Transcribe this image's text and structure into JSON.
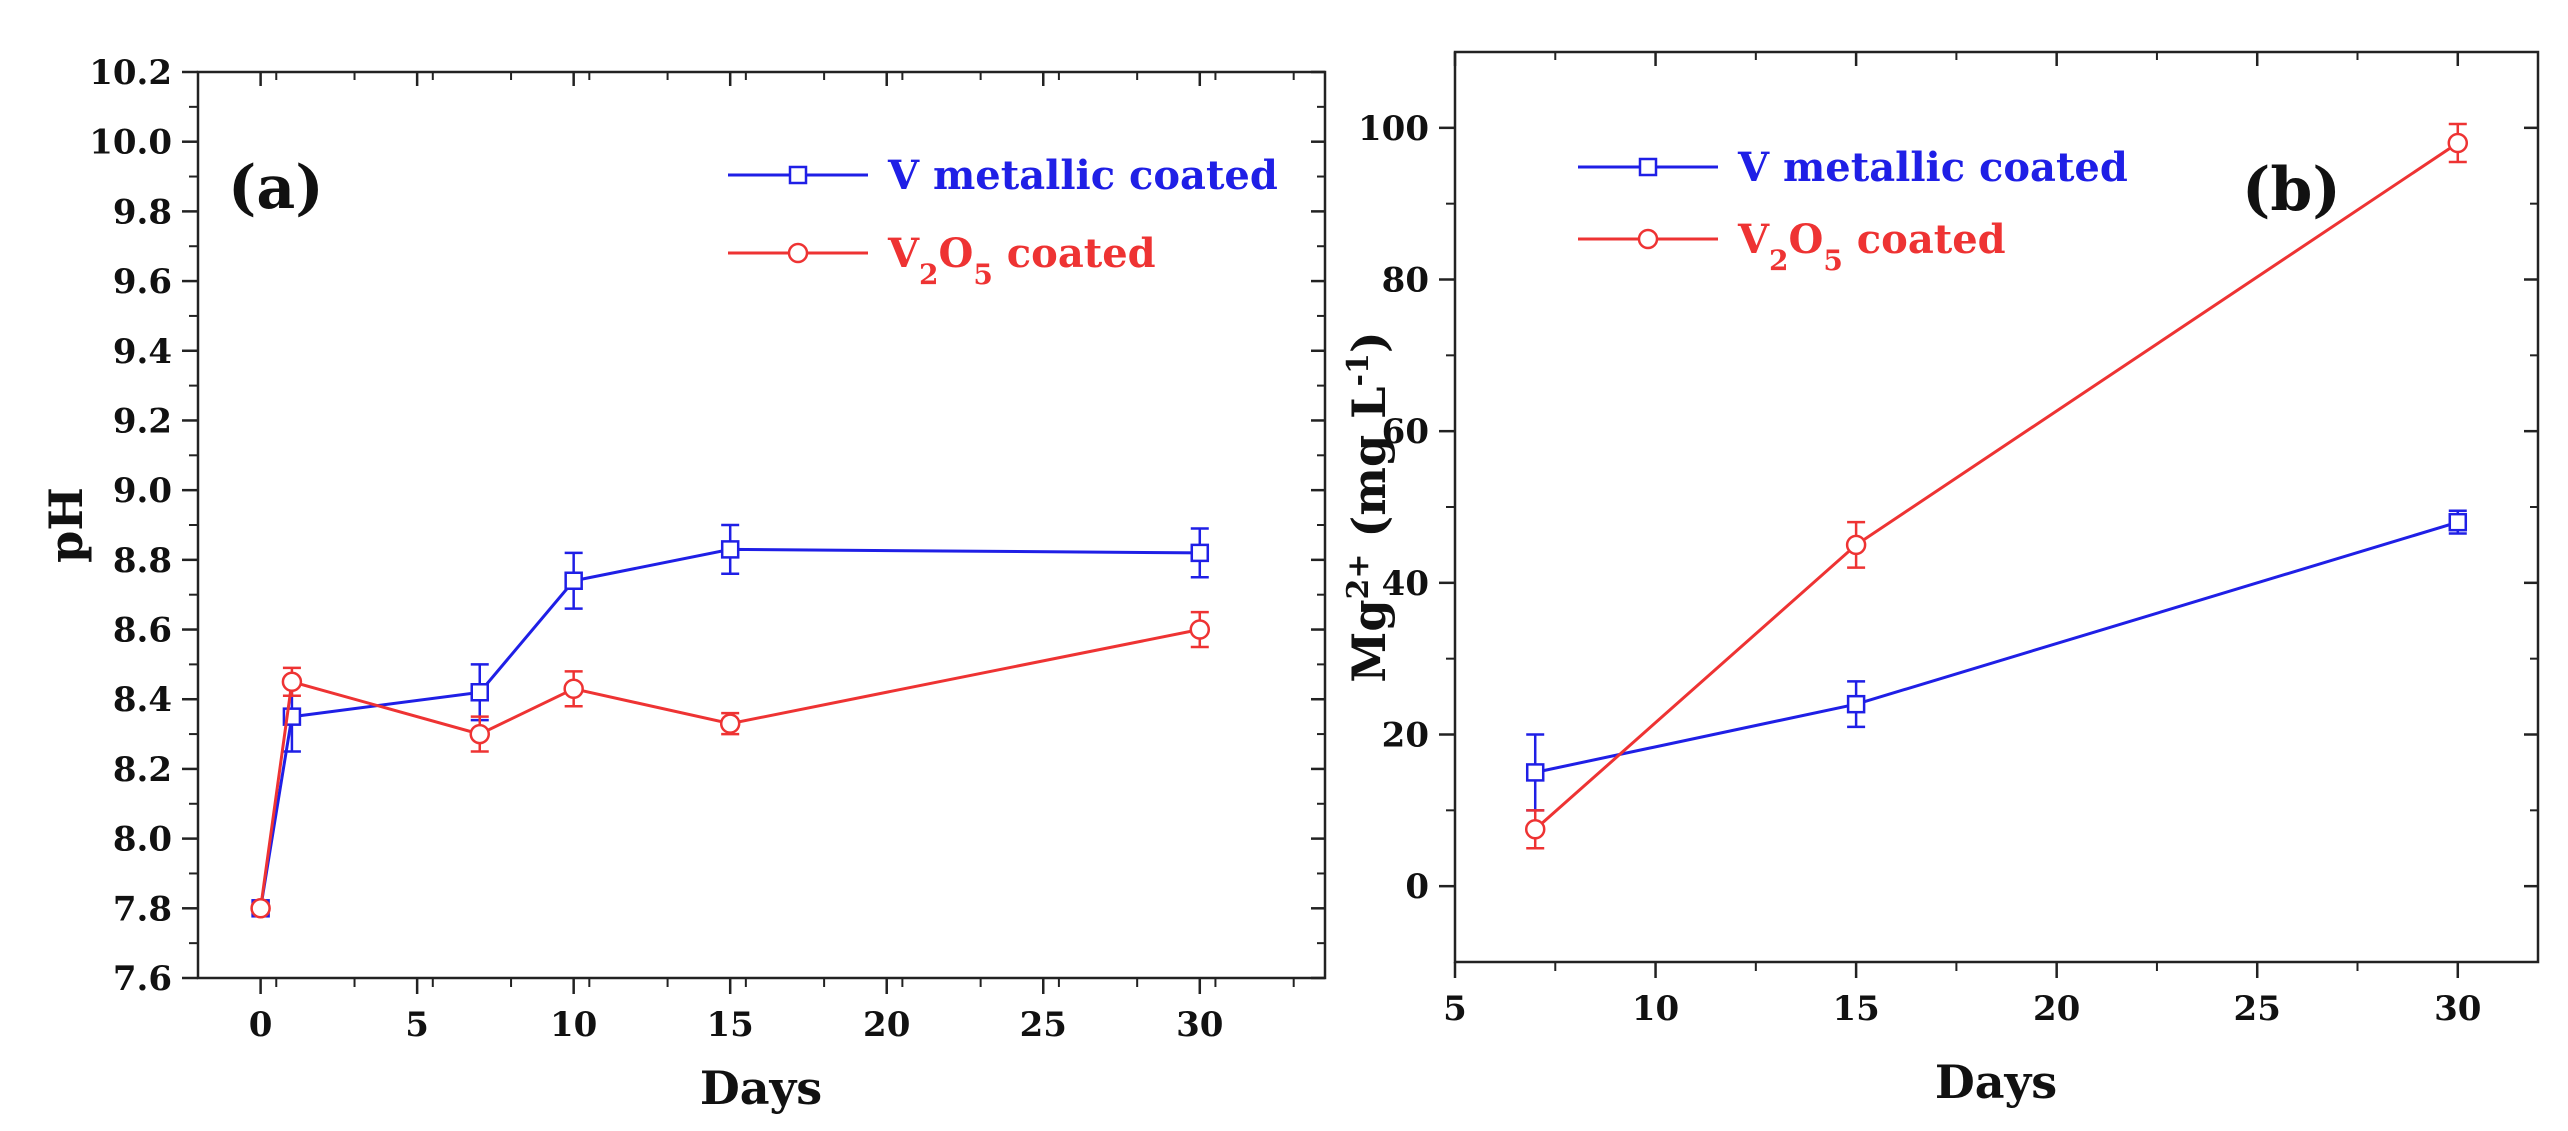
{
  "chart_data": [
    {
      "type": "line",
      "panel_label": "(a)",
      "xlabel": "Days",
      "ylabel": "pH",
      "xlim": [
        -2,
        34
      ],
      "ylim": [
        7.6,
        10.2
      ],
      "xticks": [
        0,
        5,
        10,
        15,
        20,
        25,
        30
      ],
      "xtick_labels": [
        "0",
        "5",
        "10",
        "15",
        "20",
        "25",
        "30"
      ],
      "yticks": [
        7.6,
        7.8,
        8.0,
        8.2,
        8.4,
        8.6,
        8.8,
        9.0,
        9.2,
        9.4,
        9.6,
        9.8,
        10.0,
        10.2
      ],
      "ytick_labels": [
        "7.6",
        "7.8",
        "8.0",
        "8.2",
        "8.4",
        "8.6",
        "8.8",
        "9.0",
        "9.2",
        "9.4",
        "9.6",
        "9.8",
        "10.0",
        "10.2"
      ],
      "legend_position": "top-right",
      "series": [
        {
          "name": "V metallic coated",
          "legend_parts": [
            {
              "text": "V metallic coated",
              "sub": false
            }
          ],
          "color": "#1f1fe6",
          "marker": "square",
          "x": [
            0,
            1,
            7,
            10,
            15,
            30
          ],
          "y": [
            7.8,
            8.35,
            8.42,
            8.74,
            8.83,
            8.82
          ],
          "yerr": [
            0,
            0.1,
            0.08,
            0.08,
            0.07,
            0.07
          ]
        },
        {
          "name": "V2O5 coated",
          "legend_parts": [
            {
              "text": "V",
              "sub": false
            },
            {
              "text": "2",
              "sub": true
            },
            {
              "text": "O",
              "sub": false
            },
            {
              "text": "5",
              "sub": true
            },
            {
              "text": " coated",
              "sub": false
            }
          ],
          "color": "#ee3333",
          "marker": "circle",
          "x": [
            0,
            1,
            7,
            10,
            15,
            30
          ],
          "y": [
            7.8,
            8.45,
            8.3,
            8.43,
            8.33,
            8.6
          ],
          "yerr": [
            0,
            0.04,
            0.05,
            0.05,
            0.03,
            0.05
          ]
        }
      ]
    },
    {
      "type": "line",
      "panel_label": "(b)",
      "xlabel": "Days",
      "ylabel_parts": [
        {
          "text": "Mg",
          "shift": "normal"
        },
        {
          "text": "2+",
          "shift": "super"
        },
        {
          "text": " (mg L",
          "shift": "normal"
        },
        {
          "text": "-1",
          "shift": "super"
        },
        {
          "text": ")",
          "shift": "normal"
        }
      ],
      "xlim": [
        5,
        32
      ],
      "ylim": [
        -10,
        110
      ],
      "xticks": [
        5,
        10,
        15,
        20,
        25,
        30
      ],
      "xtick_labels": [
        "5",
        "10",
        "15",
        "20",
        "25",
        "30"
      ],
      "yticks": [
        0,
        20,
        40,
        60,
        80,
        100
      ],
      "ytick_labels": [
        "0",
        "20",
        "40",
        "60",
        "80",
        "100"
      ],
      "legend_position": "top-left",
      "series": [
        {
          "name": "V metallic coated",
          "legend_parts": [
            {
              "text": "V metallic coated",
              "sub": false
            }
          ],
          "color": "#1f1fe6",
          "marker": "square",
          "x": [
            7,
            15,
            30
          ],
          "y": [
            15,
            24,
            48
          ],
          "yerr": [
            5,
            3,
            1.5
          ]
        },
        {
          "name": "V2O5 coated",
          "legend_parts": [
            {
              "text": "V",
              "sub": false
            },
            {
              "text": "2",
              "sub": true
            },
            {
              "text": "O",
              "sub": false
            },
            {
              "text": "5",
              "sub": true
            },
            {
              "text": " coated",
              "sub": false
            }
          ],
          "color": "#ee3333",
          "marker": "circle",
          "x": [
            7,
            15,
            30
          ],
          "y": [
            7.5,
            45,
            98
          ],
          "yerr": [
            2.5,
            3,
            2.5
          ]
        }
      ]
    }
  ]
}
